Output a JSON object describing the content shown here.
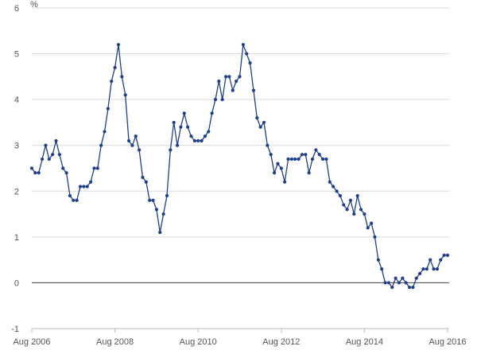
{
  "chart_data": {
    "type": "line",
    "unit_label": "%",
    "ylim": [
      -1,
      6
    ],
    "y_ticks": [
      -1,
      0,
      1,
      2,
      3,
      4,
      5,
      6
    ],
    "x_start": "2006-08",
    "x_ticks": [
      {
        "label": "Aug  2006",
        "date": "2006-08"
      },
      {
        "label": "Aug  2008",
        "date": "2008-08"
      },
      {
        "label": "Aug  2010",
        "date": "2010-08"
      },
      {
        "label": "Aug  2012",
        "date": "2012-08"
      },
      {
        "label": "Aug  2014",
        "date": "2014-08"
      },
      {
        "label": "Aug  2016",
        "date": "2016-08"
      }
    ],
    "grid": true,
    "legend": "none",
    "colors": {
      "line": "#1f3f8a",
      "marker": "#1f3f8a",
      "zero_line": "#555555",
      "grid": "#d9d9d9"
    },
    "series": [
      {
        "values": [
          2.5,
          2.4,
          2.4,
          2.7,
          3.0,
          2.7,
          2.8,
          3.1,
          2.8,
          2.5,
          2.4,
          1.9,
          1.8,
          1.8,
          2.1,
          2.1,
          2.1,
          2.2,
          2.5,
          2.5,
          3.0,
          3.3,
          3.8,
          4.4,
          4.7,
          5.2,
          4.5,
          4.1,
          3.1,
          3.0,
          3.2,
          2.9,
          2.3,
          2.2,
          1.8,
          1.8,
          1.6,
          1.1,
          1.5,
          1.9,
          2.9,
          3.5,
          3.0,
          3.4,
          3.7,
          3.4,
          3.2,
          3.1,
          3.1,
          3.1,
          3.2,
          3.3,
          3.7,
          4.0,
          4.4,
          4.0,
          4.5,
          4.5,
          4.2,
          4.4,
          4.5,
          5.2,
          5.0,
          4.8,
          4.2,
          3.6,
          3.4,
          3.5,
          3.0,
          2.8,
          2.4,
          2.6,
          2.5,
          2.2,
          2.7,
          2.7,
          2.7,
          2.7,
          2.8,
          2.8,
          2.4,
          2.7,
          2.9,
          2.8,
          2.7,
          2.7,
          2.2,
          2.1,
          2.0,
          1.9,
          1.7,
          1.6,
          1.8,
          1.5,
          1.9,
          1.6,
          1.5,
          1.2,
          1.3,
          1.0,
          0.5,
          0.3,
          0.0,
          0.0,
          -0.1,
          0.1,
          0.0,
          0.1,
          0.0,
          -0.1,
          -0.1,
          0.1,
          0.2,
          0.3,
          0.3,
          0.5,
          0.3,
          0.3,
          0.5,
          0.6,
          0.6
        ]
      }
    ]
  }
}
